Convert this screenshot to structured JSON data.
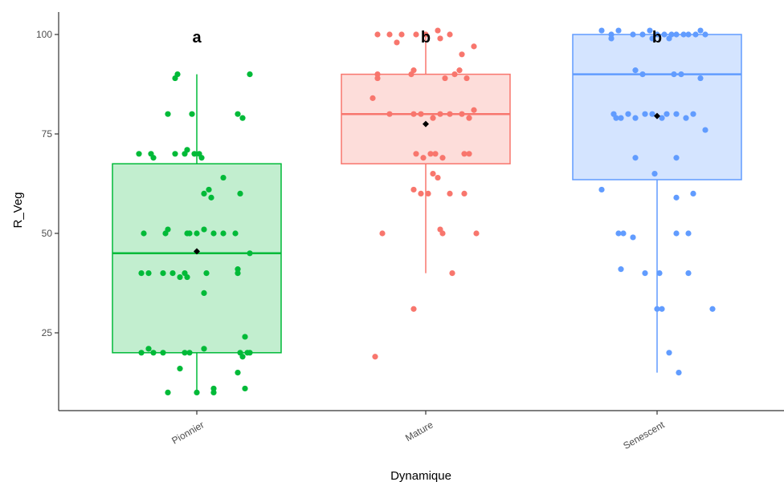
{
  "chart_data": {
    "type": "boxplot",
    "xlabel": "Dynamique",
    "ylabel": "R_Veg",
    "categories": [
      "Pionnier",
      "Mature",
      "Senescent"
    ],
    "ylim": [
      5,
      110
    ],
    "yticks": [
      25,
      50,
      75,
      100
    ],
    "grid": false,
    "legend": "none",
    "boxes": [
      {
        "name": "Pionnier",
        "color": "#00BA38",
        "fill": "#C2EECF",
        "letter": "a",
        "whisker_low": 10,
        "q1": 20,
        "median": 45,
        "q3": 67.5,
        "whisker_high": 90,
        "mean": 45.5,
        "points": [
          {
            "dx": -0.08,
            "y": 90
          },
          {
            "dx": -0.09,
            "y": 89
          },
          {
            "dx": 0.22,
            "y": 90
          },
          {
            "dx": -0.12,
            "y": 80
          },
          {
            "dx": -0.02,
            "y": 80
          },
          {
            "dx": 0.17,
            "y": 80
          },
          {
            "dx": 0.19,
            "y": 79
          },
          {
            "dx": -0.24,
            "y": 70
          },
          {
            "dx": -0.19,
            "y": 70
          },
          {
            "dx": -0.18,
            "y": 69
          },
          {
            "dx": -0.09,
            "y": 70
          },
          {
            "dx": -0.05,
            "y": 70
          },
          {
            "dx": -0.04,
            "y": 71
          },
          {
            "dx": -0.01,
            "y": 70
          },
          {
            "dx": 0.01,
            "y": 70
          },
          {
            "dx": 0.02,
            "y": 69
          },
          {
            "dx": 0.11,
            "y": 64
          },
          {
            "dx": 0.05,
            "y": 61
          },
          {
            "dx": 0.03,
            "y": 60
          },
          {
            "dx": 0.06,
            "y": 59
          },
          {
            "dx": 0.18,
            "y": 60
          },
          {
            "dx": -0.22,
            "y": 50
          },
          {
            "dx": -0.13,
            "y": 50
          },
          {
            "dx": -0.12,
            "y": 51
          },
          {
            "dx": -0.04,
            "y": 50
          },
          {
            "dx": -0.03,
            "y": 50
          },
          {
            "dx": 0.0,
            "y": 50
          },
          {
            "dx": 0.03,
            "y": 51
          },
          {
            "dx": 0.07,
            "y": 50
          },
          {
            "dx": 0.11,
            "y": 50
          },
          {
            "dx": 0.16,
            "y": 50
          },
          {
            "dx": 0.22,
            "y": 45
          },
          {
            "dx": -0.23,
            "y": 40
          },
          {
            "dx": -0.2,
            "y": 40
          },
          {
            "dx": -0.14,
            "y": 40
          },
          {
            "dx": -0.1,
            "y": 40
          },
          {
            "dx": -0.07,
            "y": 39
          },
          {
            "dx": -0.05,
            "y": 40
          },
          {
            "dx": -0.04,
            "y": 39
          },
          {
            "dx": 0.04,
            "y": 40
          },
          {
            "dx": 0.17,
            "y": 41
          },
          {
            "dx": 0.17,
            "y": 40
          },
          {
            "dx": 0.03,
            "y": 35
          },
          {
            "dx": 0.2,
            "y": 24
          },
          {
            "dx": -0.23,
            "y": 20
          },
          {
            "dx": -0.2,
            "y": 21
          },
          {
            "dx": -0.18,
            "y": 20
          },
          {
            "dx": -0.14,
            "y": 20
          },
          {
            "dx": -0.05,
            "y": 20
          },
          {
            "dx": -0.03,
            "y": 20
          },
          {
            "dx": 0.03,
            "y": 21
          },
          {
            "dx": 0.18,
            "y": 20
          },
          {
            "dx": 0.19,
            "y": 19
          },
          {
            "dx": 0.21,
            "y": 20
          },
          {
            "dx": 0.22,
            "y": 20
          },
          {
            "dx": -0.07,
            "y": 16
          },
          {
            "dx": 0.17,
            "y": 15
          },
          {
            "dx": -0.12,
            "y": 10
          },
          {
            "dx": 0.0,
            "y": 10
          },
          {
            "dx": 0.07,
            "y": 11
          },
          {
            "dx": 0.07,
            "y": 10
          },
          {
            "dx": 0.2,
            "y": 11
          }
        ]
      },
      {
        "name": "Mature",
        "color": "#F8766D",
        "fill": "#FDDDDA",
        "letter": "b",
        "whisker_low": 40,
        "q1": 67.5,
        "median": 80,
        "q3": 90,
        "whisker_high": 100,
        "mean": 77.5,
        "points": [
          {
            "dx": -0.2,
            "y": 100
          },
          {
            "dx": -0.15,
            "y": 100
          },
          {
            "dx": -0.1,
            "y": 100
          },
          {
            "dx": -0.04,
            "y": 100
          },
          {
            "dx": 0.05,
            "y": 101
          },
          {
            "dx": 0.1,
            "y": 100
          },
          {
            "dx": 0.0,
            "y": 100
          },
          {
            "dx": -0.12,
            "y": 98
          },
          {
            "dx": 0.2,
            "y": 97
          },
          {
            "dx": 0.06,
            "y": 99
          },
          {
            "dx": 0.15,
            "y": 95
          },
          {
            "dx": -0.2,
            "y": 90
          },
          {
            "dx": -0.06,
            "y": 90
          },
          {
            "dx": -0.05,
            "y": 91
          },
          {
            "dx": 0.08,
            "y": 89
          },
          {
            "dx": 0.12,
            "y": 90
          },
          {
            "dx": 0.14,
            "y": 91
          },
          {
            "dx": 0.17,
            "y": 89
          },
          {
            "dx": -0.2,
            "y": 89
          },
          {
            "dx": -0.22,
            "y": 84
          },
          {
            "dx": -0.15,
            "y": 80
          },
          {
            "dx": -0.05,
            "y": 80
          },
          {
            "dx": -0.02,
            "y": 80
          },
          {
            "dx": 0.03,
            "y": 79
          },
          {
            "dx": 0.06,
            "y": 80
          },
          {
            "dx": 0.1,
            "y": 80
          },
          {
            "dx": 0.15,
            "y": 80
          },
          {
            "dx": 0.18,
            "y": 79
          },
          {
            "dx": 0.2,
            "y": 81
          },
          {
            "dx": -0.04,
            "y": 70
          },
          {
            "dx": -0.01,
            "y": 69
          },
          {
            "dx": 0.02,
            "y": 70
          },
          {
            "dx": 0.04,
            "y": 70
          },
          {
            "dx": 0.07,
            "y": 69
          },
          {
            "dx": 0.16,
            "y": 70
          },
          {
            "dx": 0.18,
            "y": 70
          },
          {
            "dx": 0.03,
            "y": 65
          },
          {
            "dx": 0.05,
            "y": 64
          },
          {
            "dx": -0.05,
            "y": 61
          },
          {
            "dx": -0.02,
            "y": 60
          },
          {
            "dx": 0.01,
            "y": 60
          },
          {
            "dx": 0.1,
            "y": 60
          },
          {
            "dx": 0.16,
            "y": 60
          },
          {
            "dx": -0.18,
            "y": 50
          },
          {
            "dx": 0.06,
            "y": 51
          },
          {
            "dx": 0.07,
            "y": 50
          },
          {
            "dx": 0.21,
            "y": 50
          },
          {
            "dx": 0.11,
            "y": 40
          },
          {
            "dx": -0.05,
            "y": 31
          },
          {
            "dx": -0.21,
            "y": 19
          }
        ]
      },
      {
        "name": "Senescent",
        "color": "#619CFF",
        "fill": "#D4E4FF",
        "letter": "b",
        "whisker_low": 15,
        "q1": 63.5,
        "median": 90,
        "q3": 100,
        "whisker_high": 100,
        "mean": 79.5,
        "points": [
          {
            "dx": -0.23,
            "y": 101
          },
          {
            "dx": -0.19,
            "y": 100
          },
          {
            "dx": -0.16,
            "y": 101
          },
          {
            "dx": -0.1,
            "y": 100
          },
          {
            "dx": -0.06,
            "y": 100
          },
          {
            "dx": -0.03,
            "y": 101
          },
          {
            "dx": 0.0,
            "y": 100
          },
          {
            "dx": 0.03,
            "y": 100
          },
          {
            "dx": 0.06,
            "y": 100
          },
          {
            "dx": 0.08,
            "y": 100
          },
          {
            "dx": 0.11,
            "y": 100
          },
          {
            "dx": 0.13,
            "y": 100
          },
          {
            "dx": 0.16,
            "y": 100
          },
          {
            "dx": 0.18,
            "y": 101
          },
          {
            "dx": 0.2,
            "y": 100
          },
          {
            "dx": 0.05,
            "y": 99
          },
          {
            "dx": -0.19,
            "y": 99
          },
          {
            "dx": -0.02,
            "y": 99
          },
          {
            "dx": -0.09,
            "y": 91
          },
          {
            "dx": -0.06,
            "y": 90
          },
          {
            "dx": 0.07,
            "y": 90
          },
          {
            "dx": 0.1,
            "y": 90
          },
          {
            "dx": 0.18,
            "y": 89
          },
          {
            "dx": -0.18,
            "y": 80
          },
          {
            "dx": -0.15,
            "y": 79
          },
          {
            "dx": -0.12,
            "y": 80
          },
          {
            "dx": -0.09,
            "y": 79
          },
          {
            "dx": -0.05,
            "y": 80
          },
          {
            "dx": -0.02,
            "y": 80
          },
          {
            "dx": 0.02,
            "y": 79
          },
          {
            "dx": 0.04,
            "y": 80
          },
          {
            "dx": 0.08,
            "y": 80
          },
          {
            "dx": 0.12,
            "y": 79
          },
          {
            "dx": 0.15,
            "y": 80
          },
          {
            "dx": -0.17,
            "y": 79
          },
          {
            "dx": 0.2,
            "y": 76
          },
          {
            "dx": -0.09,
            "y": 69
          },
          {
            "dx": 0.08,
            "y": 69
          },
          {
            "dx": -0.01,
            "y": 65
          },
          {
            "dx": -0.23,
            "y": 61
          },
          {
            "dx": 0.08,
            "y": 59
          },
          {
            "dx": 0.15,
            "y": 60
          },
          {
            "dx": -0.16,
            "y": 50
          },
          {
            "dx": -0.14,
            "y": 50
          },
          {
            "dx": -0.1,
            "y": 49
          },
          {
            "dx": 0.08,
            "y": 50
          },
          {
            "dx": 0.13,
            "y": 50
          },
          {
            "dx": -0.15,
            "y": 41
          },
          {
            "dx": -0.05,
            "y": 40
          },
          {
            "dx": 0.01,
            "y": 40
          },
          {
            "dx": 0.13,
            "y": 40
          },
          {
            "dx": 0.0,
            "y": 31
          },
          {
            "dx": 0.02,
            "y": 31
          },
          {
            "dx": 0.23,
            "y": 31
          },
          {
            "dx": 0.05,
            "y": 20
          },
          {
            "dx": 0.09,
            "y": 15
          }
        ]
      }
    ]
  }
}
